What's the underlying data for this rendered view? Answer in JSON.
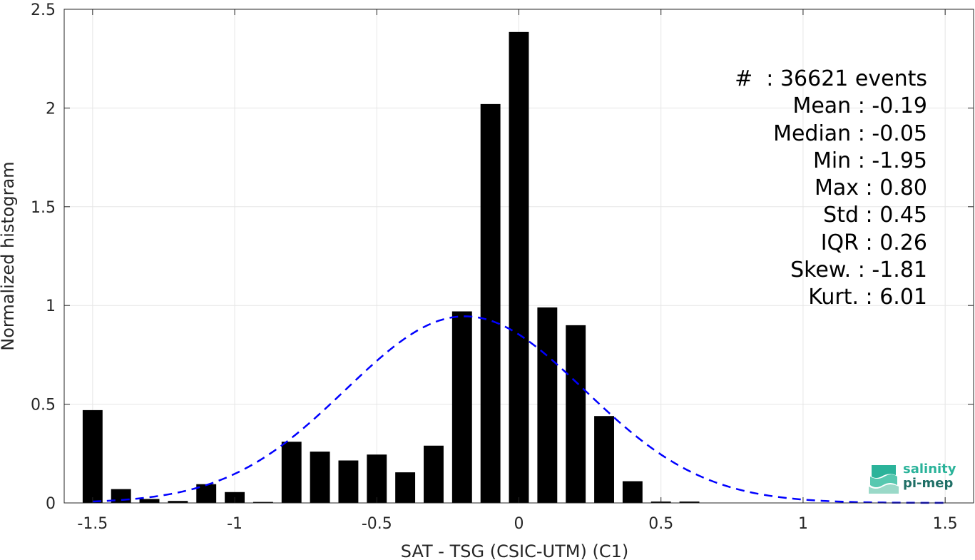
{
  "chart_data": {
    "type": "bar",
    "xlabel": "SAT - TSG (CSIC-UTM) (C1)",
    "ylabel": "Normalized histogram",
    "xlim": [
      -1.6,
      1.6
    ],
    "ylim": [
      0,
      2.5
    ],
    "xticks": [
      -1.5,
      -1,
      -0.5,
      0,
      0.5,
      1,
      1.5
    ],
    "xtick_labels": [
      "-1.5",
      "-1",
      "-0.5",
      "0",
      "0.5",
      "1",
      "1.5"
    ],
    "yticks": [
      0,
      0.5,
      1,
      1.5,
      2,
      2.5
    ],
    "ytick_labels": [
      "0",
      "0.5",
      "1",
      "1.5",
      "2",
      "2.5"
    ],
    "grid": true,
    "bar_color": "#000000",
    "bin_width": 0.1,
    "bars": {
      "x": [
        -1.5,
        -1.4,
        -1.3,
        -1.2,
        -1.1,
        -1.0,
        -0.9,
        -0.8,
        -0.7,
        -0.6,
        -0.5,
        -0.4,
        -0.3,
        -0.2,
        -0.1,
        0.0,
        0.1,
        0.2,
        0.3,
        0.4,
        0.5,
        0.6,
        0.7,
        0.8,
        0.9,
        1.0,
        1.1,
        1.2,
        1.3,
        1.4,
        1.5
      ],
      "values": [
        0.47,
        0.07,
        0.02,
        0.01,
        0.095,
        0.055,
        0.005,
        0.31,
        0.26,
        0.215,
        0.245,
        0.155,
        0.29,
        0.97,
        2.02,
        2.385,
        0.99,
        0.9,
        0.44,
        0.11,
        0.007,
        0.007,
        0.0,
        0.0,
        0.0,
        0.0,
        0.0,
        0.0,
        0.0,
        0.0,
        0.0
      ]
    },
    "fit_curve": {
      "style": "dashed",
      "color": "#0000ff",
      "mean": -0.19,
      "std": 0.42,
      "peak": 0.945
    }
  },
  "stats": [
    {
      "label": "#  : 36621 events"
    },
    {
      "label": "Mean : -0.19"
    },
    {
      "label": "Median : -0.05"
    },
    {
      "label": "Min : -1.95"
    },
    {
      "label": "Max : 0.80"
    },
    {
      "label": "Std : 0.45"
    },
    {
      "label": "IQR : 0.26"
    },
    {
      "label": "Skew. : -1.81"
    },
    {
      "label": "Kurt. : 6.01"
    }
  ],
  "logo": {
    "line1": "salinity",
    "line2": "pi-mep",
    "color_primary": "#2bb39a",
    "color_secondary": "#1f6f66"
  }
}
